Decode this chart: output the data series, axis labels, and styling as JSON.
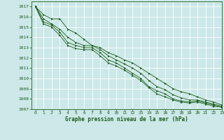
{
  "background_color": "#cce8e8",
  "grid_color": "#ffffff",
  "line_color": "#1a5c1a",
  "marker_color": "#1a5c1a",
  "xlabel": "Graphe pression niveau de la mer (hPa)",
  "xlabel_color": "#1a5c1a",
  "xlabel_fontsize": 5.5,
  "tick_fontsize": 4.5,
  "xlim": [
    -0.5,
    23
  ],
  "ylim": [
    1007,
    1017.5
  ],
  "yticks": [
    1007,
    1008,
    1009,
    1010,
    1011,
    1012,
    1013,
    1014,
    1015,
    1016,
    1017
  ],
  "xticks": [
    0,
    1,
    2,
    3,
    4,
    5,
    6,
    7,
    8,
    9,
    10,
    11,
    12,
    13,
    14,
    15,
    16,
    17,
    18,
    19,
    20,
    21,
    22,
    23
  ],
  "series": [
    [
      1017.0,
      1016.2,
      1015.8,
      1015.8,
      1014.8,
      1014.4,
      1013.8,
      1013.2,
      1013.0,
      1012.5,
      1012.2,
      1011.8,
      1011.5,
      1011.0,
      1010.5,
      1010.0,
      1009.5,
      1009.0,
      1008.7,
      1008.5,
      1008.2,
      1007.9,
      1007.7,
      1007.4
    ],
    [
      1017.0,
      1015.8,
      1015.3,
      1014.8,
      1014.0,
      1013.5,
      1013.2,
      1013.2,
      1012.8,
      1012.2,
      1011.8,
      1011.4,
      1011.0,
      1010.5,
      1009.8,
      1009.2,
      1008.9,
      1008.4,
      1008.1,
      1007.9,
      1007.9,
      1007.7,
      1007.5,
      1007.3
    ],
    [
      1017.0,
      1015.5,
      1015.2,
      1014.5,
      1013.5,
      1013.2,
      1013.0,
      1013.0,
      1012.5,
      1011.8,
      1011.5,
      1011.0,
      1010.5,
      1010.0,
      1009.2,
      1008.8,
      1008.5,
      1008.0,
      1007.8,
      1007.7,
      1007.8,
      1007.6,
      1007.4,
      1007.2
    ],
    [
      1017.0,
      1015.3,
      1015.0,
      1014.2,
      1013.2,
      1012.9,
      1012.8,
      1012.8,
      1012.2,
      1011.5,
      1011.2,
      1010.8,
      1010.3,
      1009.8,
      1009.1,
      1008.5,
      1008.2,
      1007.9,
      1007.7,
      1007.6,
      1007.7,
      1007.5,
      1007.3,
      1007.2
    ]
  ],
  "figsize": [
    3.2,
    2.0
  ],
  "dpi": 100
}
